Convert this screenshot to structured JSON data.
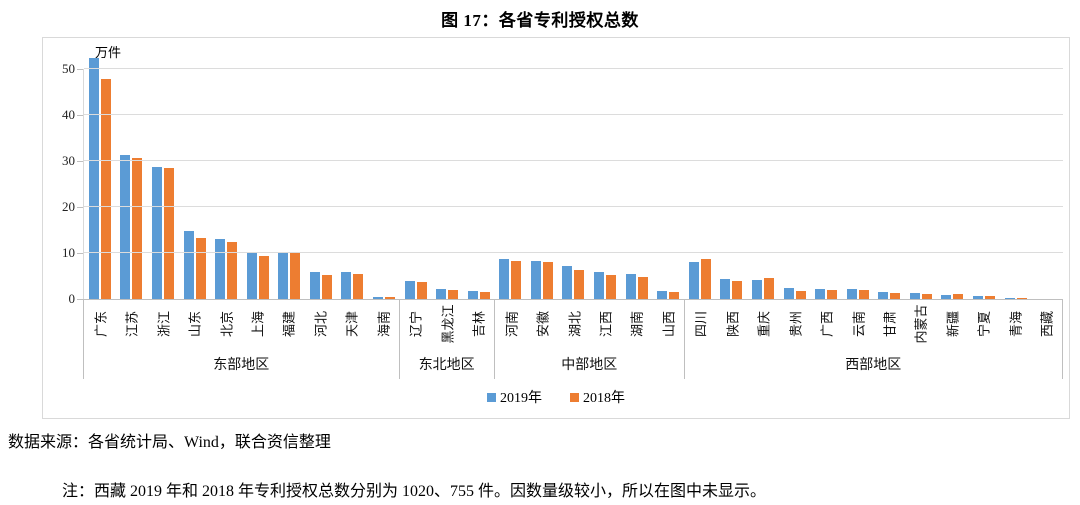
{
  "title": "图 17：各省专利授权总数",
  "source": "数据来源：各省统计局、Wind，联合资信整理",
  "note": "注：西藏 2019 年和 2018 年专利授权总数分别为 1020、755 件。因数量级较小，所以在图中未显示。",
  "chart_data": {
    "type": "bar",
    "title": "图 17：各省专利授权总数",
    "unit_label": "万件",
    "ylim": [
      0,
      50
    ],
    "yticks": [
      0,
      10,
      20,
      30,
      40,
      50
    ],
    "grid": true,
    "legend_position": "bottom-center",
    "series_names": [
      "2019年",
      "2018年"
    ],
    "series_colors": [
      "#5B9BD5",
      "#ED7D31"
    ],
    "axis_color": "#bfbfbf",
    "gridline_color": "#dcdcdc",
    "groups": [
      {
        "region": "东部地区",
        "categories": [
          "广东",
          "江苏",
          "浙江",
          "山东",
          "北京",
          "上海",
          "福建",
          "河北",
          "天津",
          "海南"
        ],
        "series": [
          {
            "name": "2019年",
            "values": [
              52.5,
              31.4,
              28.6,
              14.7,
              13.1,
              10.1,
              10.0,
              5.9,
              5.9,
              0.5
            ]
          },
          {
            "name": "2018年",
            "values": [
              47.9,
              30.7,
              28.5,
              13.3,
              12.3,
              9.3,
              10.3,
              5.2,
              5.5,
              0.4
            ]
          }
        ]
      },
      {
        "region": "东北地区",
        "categories": [
          "辽宁",
          "黑龙江",
          "吉林"
        ],
        "series": [
          {
            "name": "2019年",
            "values": [
              4.0,
              2.2,
              1.7
            ]
          },
          {
            "name": "2018年",
            "values": [
              3.6,
              2.0,
              1.6
            ]
          }
        ]
      },
      {
        "region": "中部地区",
        "categories": [
          "河南",
          "安徽",
          "湖北",
          "江西",
          "湖南",
          "山西"
        ],
        "series": [
          {
            "name": "2019年",
            "values": [
              8.6,
              8.2,
              7.2,
              5.9,
              5.4,
              1.7
            ]
          },
          {
            "name": "2018年",
            "values": [
              8.2,
              8.0,
              6.3,
              5.3,
              4.8,
              1.5
            ]
          }
        ]
      },
      {
        "region": "西部地区",
        "categories": [
          "四川",
          "陕西",
          "重庆",
          "贵州",
          "广西",
          "云南",
          "甘肃",
          "内蒙古",
          "新疆",
          "宁夏",
          "青海",
          "西藏"
        ],
        "series": [
          {
            "name": "2019年",
            "values": [
              8.1,
              4.3,
              4.1,
              2.4,
              2.1,
              2.1,
              1.5,
              1.2,
              0.9,
              0.55,
              0.25,
              0.102
            ]
          },
          {
            "name": "2018年",
            "values": [
              8.7,
              4.0,
              4.5,
              1.8,
              2.0,
              2.0,
              1.4,
              1.1,
              1.0,
              0.55,
              0.2,
              0.0755
            ]
          }
        ]
      }
    ]
  }
}
